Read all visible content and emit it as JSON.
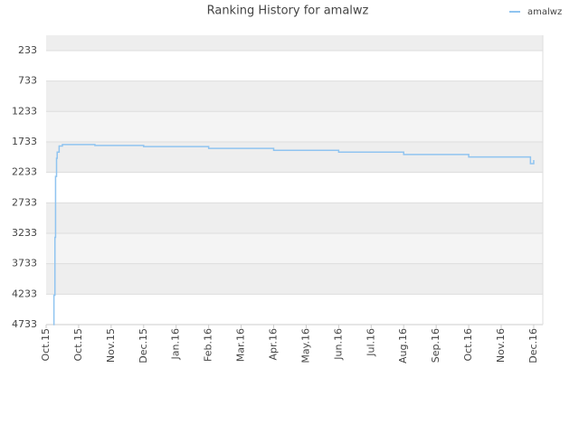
{
  "chart_data": {
    "type": "line",
    "title": "Ranking History for amalwz",
    "series": [
      {
        "name": "amalwz",
        "color": "#90c4f0",
        "x": [
          0.22,
          0.24,
          0.27,
          0.29,
          0.32,
          0.34,
          0.4,
          0.5,
          1.5,
          3,
          5,
          7,
          9,
          11,
          13,
          14.9,
          15.0
        ],
        "values": [
          4733,
          4250,
          3300,
          2300,
          2000,
          1900,
          1800,
          1776,
          1790,
          1810,
          1840,
          1870,
          1900,
          1940,
          1980,
          2090,
          2030
        ]
      }
    ],
    "ylim": [
      -19,
      4733
    ],
    "yticks": [
      233,
      733,
      1233,
      1733,
      2233,
      2733,
      3233,
      3733,
      4233,
      4733
    ],
    "xlim": [
      0,
      15.28
    ],
    "xticks": [
      {
        "value": 0,
        "label": "Oct.15"
      },
      {
        "value": 1,
        "label": "Oct.15"
      },
      {
        "value": 2,
        "label": "Nov.15"
      },
      {
        "value": 3,
        "label": "Dec.15"
      },
      {
        "value": 4,
        "label": "Jan.16"
      },
      {
        "value": 5,
        "label": "Feb.16"
      },
      {
        "value": 6,
        "label": "Mar.16"
      },
      {
        "value": 7,
        "label": "Apr.16"
      },
      {
        "value": 8,
        "label": "May.16"
      },
      {
        "value": 9,
        "label": "Jun.16"
      },
      {
        "value": 10,
        "label": "Jul.16"
      },
      {
        "value": 11,
        "label": "Aug.16"
      },
      {
        "value": 12,
        "label": "Sep.16"
      },
      {
        "value": 13,
        "label": "Oct.16"
      },
      {
        "value": 14,
        "label": "Nov.16"
      },
      {
        "value": 15,
        "label": "Dec.16"
      }
    ],
    "grid": true,
    "legend": "top-right"
  }
}
